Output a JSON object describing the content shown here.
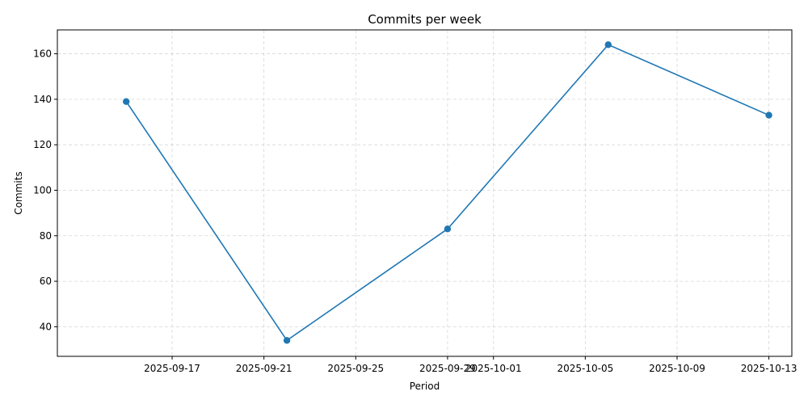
{
  "chart_data": {
    "type": "line",
    "title": "Commits per week",
    "xlabel": "Period",
    "ylabel": "Commits",
    "x_type": "date",
    "x_range": [
      "2025-09-12",
      "2025-10-14"
    ],
    "ylim": [
      27,
      170.5
    ],
    "grid": true,
    "x_ticks": [
      "2025-09-17",
      "2025-09-21",
      "2025-09-25",
      "2025-09-29",
      "2025-10-01",
      "2025-10-05",
      "2025-10-09",
      "2025-10-13"
    ],
    "y_ticks": [
      40,
      60,
      80,
      100,
      120,
      140,
      160
    ],
    "series": [
      {
        "color": "#1f77b4",
        "marker": "circle",
        "x": [
          "2025-09-15",
          "2025-09-22",
          "2025-09-29",
          "2025-10-06",
          "2025-10-13"
        ],
        "values": [
          139,
          34,
          83,
          164,
          133
        ]
      }
    ]
  }
}
